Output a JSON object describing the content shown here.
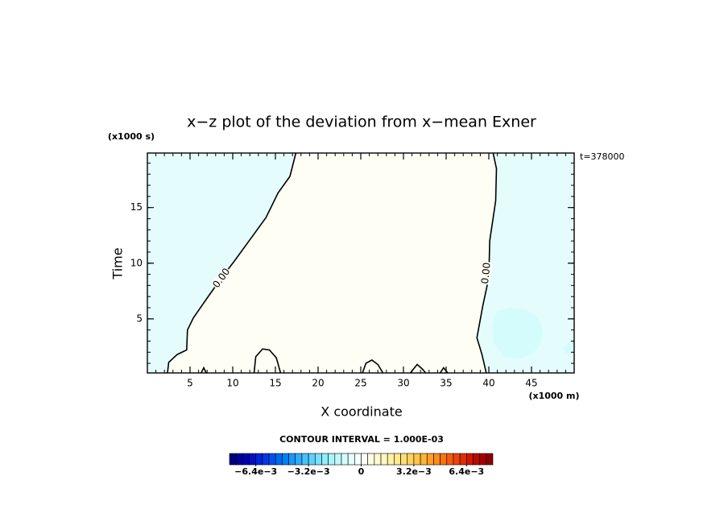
{
  "chart_data": {
    "type": "contour",
    "title": "x−z plot of the deviation from x−mean Exner",
    "x_label": "X coordinate",
    "y_label": "Time",
    "x_unit": "(x1000 m)",
    "y_unit": "(x1000 s)",
    "time_label": "t=378000",
    "contour_interval": "CONTOUR INTERVAL = 1.000E-03",
    "xlim": [
      0,
      50
    ],
    "ylim": [
      0.14,
      19.9
    ],
    "xticks": [
      5,
      10,
      15,
      20,
      25,
      30,
      35,
      40,
      45
    ],
    "yticks": [
      5,
      10,
      15
    ],
    "xminor": 1,
    "yminor": 1,
    "background_color": "#e4fcfc",
    "line_color": "#000000",
    "fill_between": {
      "contours": [
        0,
        1
      ],
      "color": "#fefef4"
    },
    "shaded_regions": [
      {
        "color": "#d4fcfc",
        "x": [
          40.4,
          41.0,
          42.5,
          44.4,
          45.8,
          46.3,
          46.0,
          45.0,
          43.5,
          41.8,
          40.6
        ],
        "y": [
          4.5,
          5.7,
          6.0,
          5.8,
          5.1,
          4.0,
          2.6,
          1.8,
          1.4,
          1.6,
          2.8
        ]
      },
      {
        "color": "#d4fcfc",
        "x": [
          48.7,
          49.8,
          50,
          50,
          49.0
        ],
        "y": [
          2.4,
          3.1,
          3.0,
          1.9,
          1.9
        ]
      }
    ],
    "contours": [
      {
        "label": "0.00",
        "x": [
          2.36,
          2.5,
          3.5,
          4.6,
          4.7,
          5.4,
          7.3,
          8.7,
          10.1,
          12.0,
          13.9,
          15.3,
          16.7,
          17.4
        ],
        "y": [
          0.14,
          1.09,
          1.8,
          2.2,
          4.0,
          5.1,
          7.2,
          8.7,
          10.1,
          12.1,
          14.1,
          16.3,
          17.8,
          19.9
        ]
      },
      {
        "label": "0.00",
        "x": [
          39.7,
          39.2,
          38.6,
          39.3,
          40.0,
          40.1,
          40.8,
          40.9,
          40.5
        ],
        "y": [
          0.14,
          1.8,
          3.3,
          6.2,
          8.7,
          12.0,
          15.6,
          18.5,
          19.9
        ]
      },
      {
        "x": [
          12.5,
          12.7,
          13.5,
          14.3,
          15.1,
          15.6
        ],
        "y": [
          0.14,
          1.6,
          2.3,
          2.2,
          1.5,
          0.14
        ]
      },
      {
        "x": [
          25.2,
          25.6,
          26.3,
          27.0,
          27.6
        ],
        "y": [
          0.14,
          1.0,
          1.3,
          0.9,
          0.14
        ]
      },
      {
        "x": [
          30.8,
          31.6,
          32.2,
          32.6
        ],
        "y": [
          0.14,
          0.9,
          0.5,
          0.14
        ]
      },
      {
        "x": [
          34.3,
          34.7,
          35.2
        ],
        "y": [
          0.14,
          0.6,
          0.14
        ]
      },
      {
        "x": [
          6.3,
          6.6,
          6.9
        ],
        "y": [
          0.14,
          0.6,
          0.14
        ]
      }
    ],
    "colorbar": {
      "lim": [
        -0.008,
        0.008
      ],
      "ticks": [
        {
          "value": -0.0064,
          "label": "−6.4e−3"
        },
        {
          "value": -0.0032,
          "label": "−3.2e−3"
        },
        0,
        {
          "value": 0.0032,
          "label": "3.2e−3"
        },
        {
          "value": 0.0064,
          "label": "6.4e−3"
        }
      ],
      "colors": [
        "#000080",
        "#00009a",
        "#0000b4",
        "#0010c8",
        "#0024d8",
        "#0038e8",
        "#0050f0",
        "#0068f4",
        "#0080f8",
        "#1898fa",
        "#30acfc",
        "#48c0fc",
        "#60d0fc",
        "#78e0fc",
        "#90ecfc",
        "#a8f4fc",
        "#c0f8fc",
        "#d4fcfc",
        "#e4fcfc",
        "#f4fefe",
        "#fefef4",
        "#fefce4",
        "#fefad0",
        "#fef6bc",
        "#fef0a4",
        "#fee88c",
        "#fede74",
        "#fed25c",
        "#fec448",
        "#feb434",
        "#fea024",
        "#fe8c18",
        "#fa7410",
        "#f45c0c",
        "#ec4408",
        "#e02c04",
        "#d01800",
        "#bc0800",
        "#a40000",
        "#8c0000"
      ]
    }
  }
}
